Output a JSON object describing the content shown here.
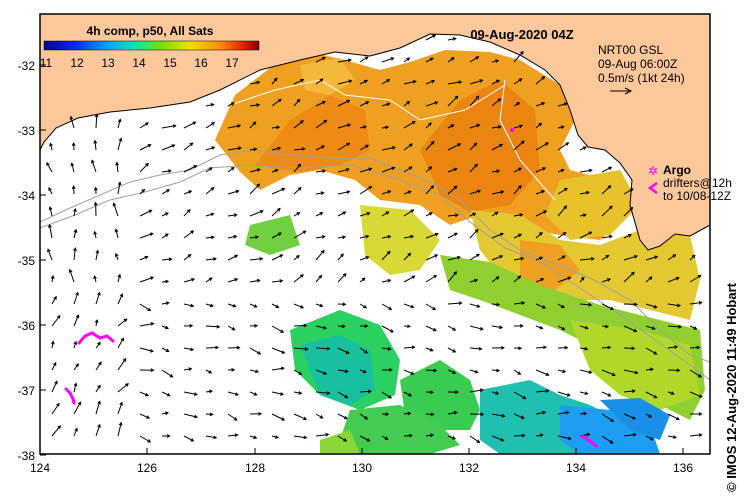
{
  "map": {
    "title": "09-Aug-2020 04Z",
    "colorbar": {
      "label": "4h comp, p50, All Sats",
      "ticks": [
        "11",
        "12",
        "13",
        "14",
        "15",
        "16",
        "17"
      ]
    },
    "current_info": {
      "line1": "NRT00 GSL",
      "line2": "09-Aug 06:00Z",
      "line3": "0.5m/s (1kt 24h)"
    },
    "legend": {
      "argo": "Argo",
      "drifters_line1": "drifters@12h",
      "drifters_line2": "to 10/08-12Z"
    },
    "credit": "© IMOS 12-Aug-2020 11:49 Hobart",
    "x_ticks": [
      "124",
      "126",
      "128",
      "130",
      "132",
      "134",
      "136"
    ],
    "y_ticks": [
      "-32",
      "-33",
      "-34",
      "-35",
      "-36",
      "-37",
      "-38"
    ],
    "extent": {
      "lon": [
        124,
        136.5
      ],
      "lat": [
        -38.15,
        -31.4
      ]
    },
    "colors": {
      "land": "#fcc89b",
      "argo": "#ff00ff",
      "drifter": "#ff00ff"
    }
  }
}
